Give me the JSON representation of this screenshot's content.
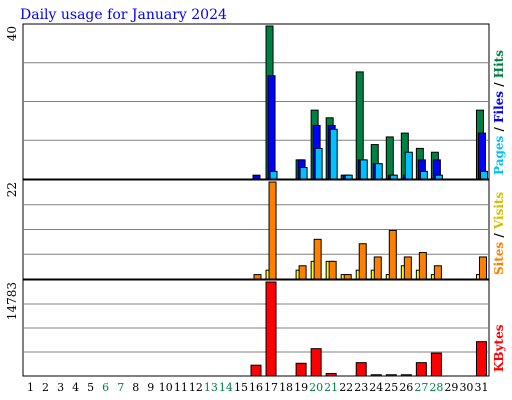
{
  "chart_data": {
    "type": "bar",
    "title": "Daily usage for January 2024",
    "categories": [
      "1",
      "2",
      "3",
      "4",
      "5",
      "6",
      "7",
      "8",
      "9",
      "10",
      "11",
      "12",
      "13",
      "14",
      "15",
      "16",
      "17",
      "18",
      "19",
      "20",
      "21",
      "22",
      "23",
      "24",
      "25",
      "26",
      "27",
      "28",
      "29",
      "30",
      "31"
    ],
    "weekend_days": [
      "6",
      "7",
      "13",
      "14",
      "20",
      "21",
      "27",
      "28"
    ],
    "grid": true,
    "panels": [
      {
        "id": "hits-files-pages",
        "ymax_label": "40",
        "ylim": [
          0,
          40
        ],
        "legend": [
          "Pages",
          "/",
          "Files",
          "/",
          "Hits"
        ],
        "series": [
          {
            "name": "Hits",
            "color": "#008040",
            "values": [
              0,
              0,
              0,
              0,
              0,
              0,
              0,
              0,
              0,
              0,
              0,
              0,
              0,
              0,
              0,
              0,
              40,
              0,
              5,
              18,
              16,
              1,
              28,
              9,
              11,
              12,
              8,
              7,
              0,
              0,
              18
            ]
          },
          {
            "name": "Files",
            "color": "#0000ff",
            "values": [
              0,
              0,
              0,
              0,
              0,
              0,
              0,
              0,
              0,
              0,
              0,
              0,
              0,
              0,
              0,
              1,
              27,
              0,
              5,
              14,
              14,
              1,
              5,
              4,
              1,
              1,
              5,
              5,
              0,
              0,
              12
            ]
          },
          {
            "name": "Pages",
            "color": "#00c0ff",
            "values": [
              0,
              0,
              0,
              0,
              0,
              0,
              0,
              0,
              0,
              0,
              0,
              0,
              0,
              0,
              0,
              0,
              2,
              0,
              3,
              8,
              13,
              1,
              5,
              4,
              1,
              7,
              2,
              1,
              0,
              0,
              2
            ]
          }
        ]
      },
      {
        "id": "visits-sites",
        "ymax_label": "22",
        "ylim": [
          0,
          22
        ],
        "legend": [
          "Sites",
          "/",
          "Visits"
        ],
        "series": [
          {
            "name": "Visits",
            "color": "#ffff00",
            "values": [
              0,
              0,
              0,
              0,
              0,
              0,
              0,
              0,
              0,
              0,
              0,
              0,
              0,
              0,
              0,
              0,
              2,
              0,
              2,
              4,
              4,
              1,
              2,
              2,
              1,
              3,
              2,
              1,
              0,
              0,
              1
            ]
          },
          {
            "name": "Sites",
            "color": "#ff8000",
            "values": [
              0,
              0,
              0,
              0,
              0,
              0,
              0,
              0,
              0,
              0,
              0,
              0,
              0,
              0,
              0,
              1,
              22,
              0,
              3,
              9,
              4,
              1,
              8,
              5,
              11,
              5,
              6,
              3,
              0,
              0,
              5
            ]
          }
        ]
      },
      {
        "id": "kbytes",
        "ymax_label": "14783",
        "ylim": [
          0,
          14783
        ],
        "legend": [
          "KBytes"
        ],
        "series": [
          {
            "name": "KBytes",
            "color": "#ff0000",
            "values": [
              0,
              0,
              0,
              0,
              0,
              0,
              0,
              0,
              0,
              0,
              0,
              0,
              0,
              0,
              0,
              1700,
              14783,
              0,
              2000,
              4300,
              400,
              0,
              2100,
              200,
              200,
              200,
              2100,
              3600,
              0,
              0,
              5400
            ]
          }
        ]
      }
    ]
  }
}
